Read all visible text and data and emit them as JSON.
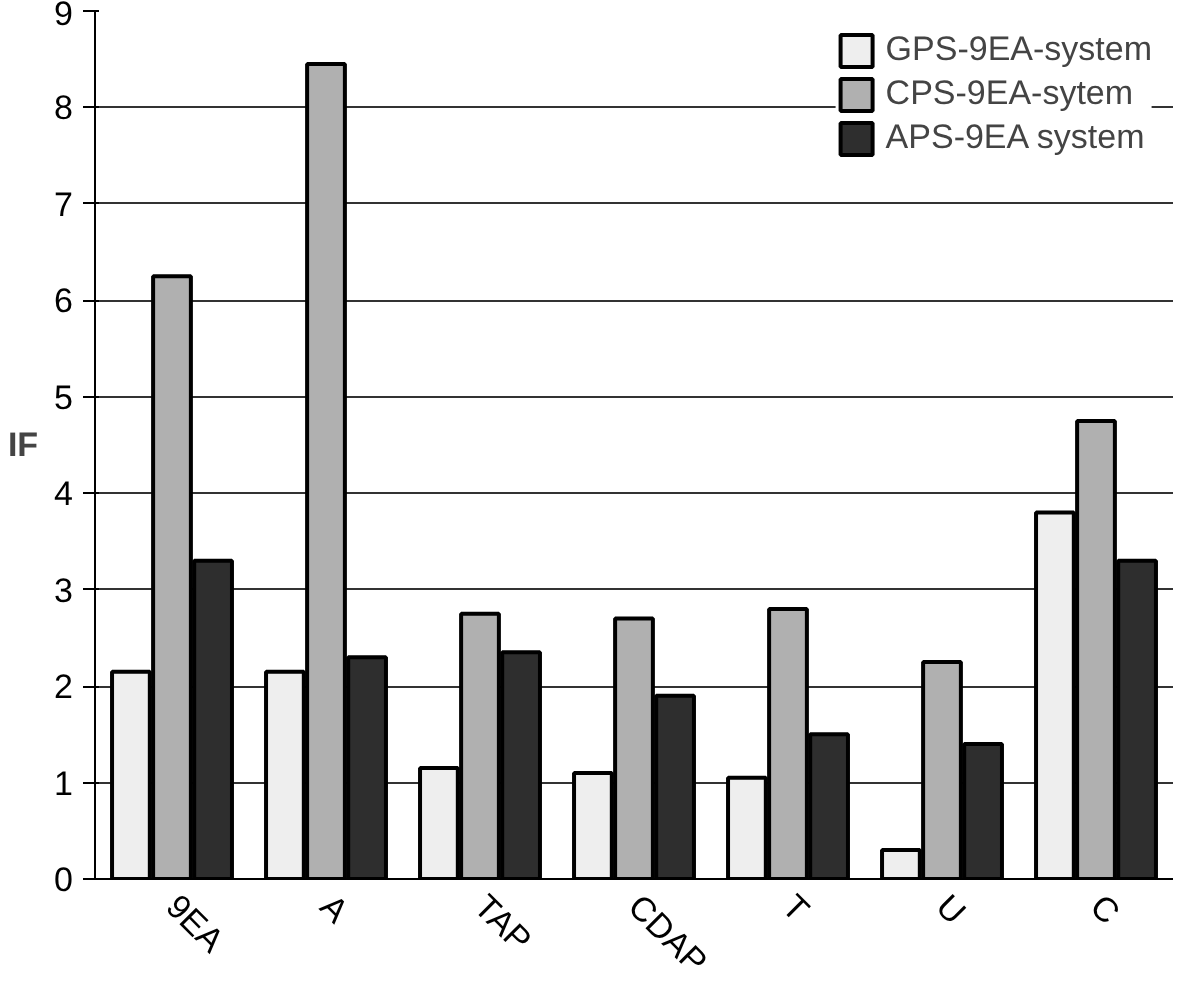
{
  "chart_data": {
    "type": "bar",
    "ylabel": "IF",
    "categories": [
      "9EA",
      "A",
      "TAP",
      "CDAP",
      "T",
      "U",
      "C"
    ],
    "series": [
      {
        "name": "GPS-9EA-system",
        "color": "#eeeeee",
        "values": [
          2.15,
          2.15,
          1.15,
          1.1,
          1.05,
          0.3,
          3.8
        ]
      },
      {
        "name": "CPS-9EA-sytem",
        "color": "#b0b0b0",
        "values": [
          6.25,
          8.45,
          2.75,
          2.7,
          2.8,
          2.25,
          4.75
        ]
      },
      {
        "name": "APS-9EA system",
        "color": "#2e2e2e",
        "values": [
          3.3,
          2.3,
          2.35,
          1.9,
          1.5,
          1.4,
          3.3
        ]
      }
    ],
    "ylim": [
      0,
      9
    ],
    "yticks": [
      0,
      1,
      2,
      3,
      4,
      5,
      6,
      7,
      8,
      9
    ],
    "grid": "y",
    "legend": "top right"
  }
}
